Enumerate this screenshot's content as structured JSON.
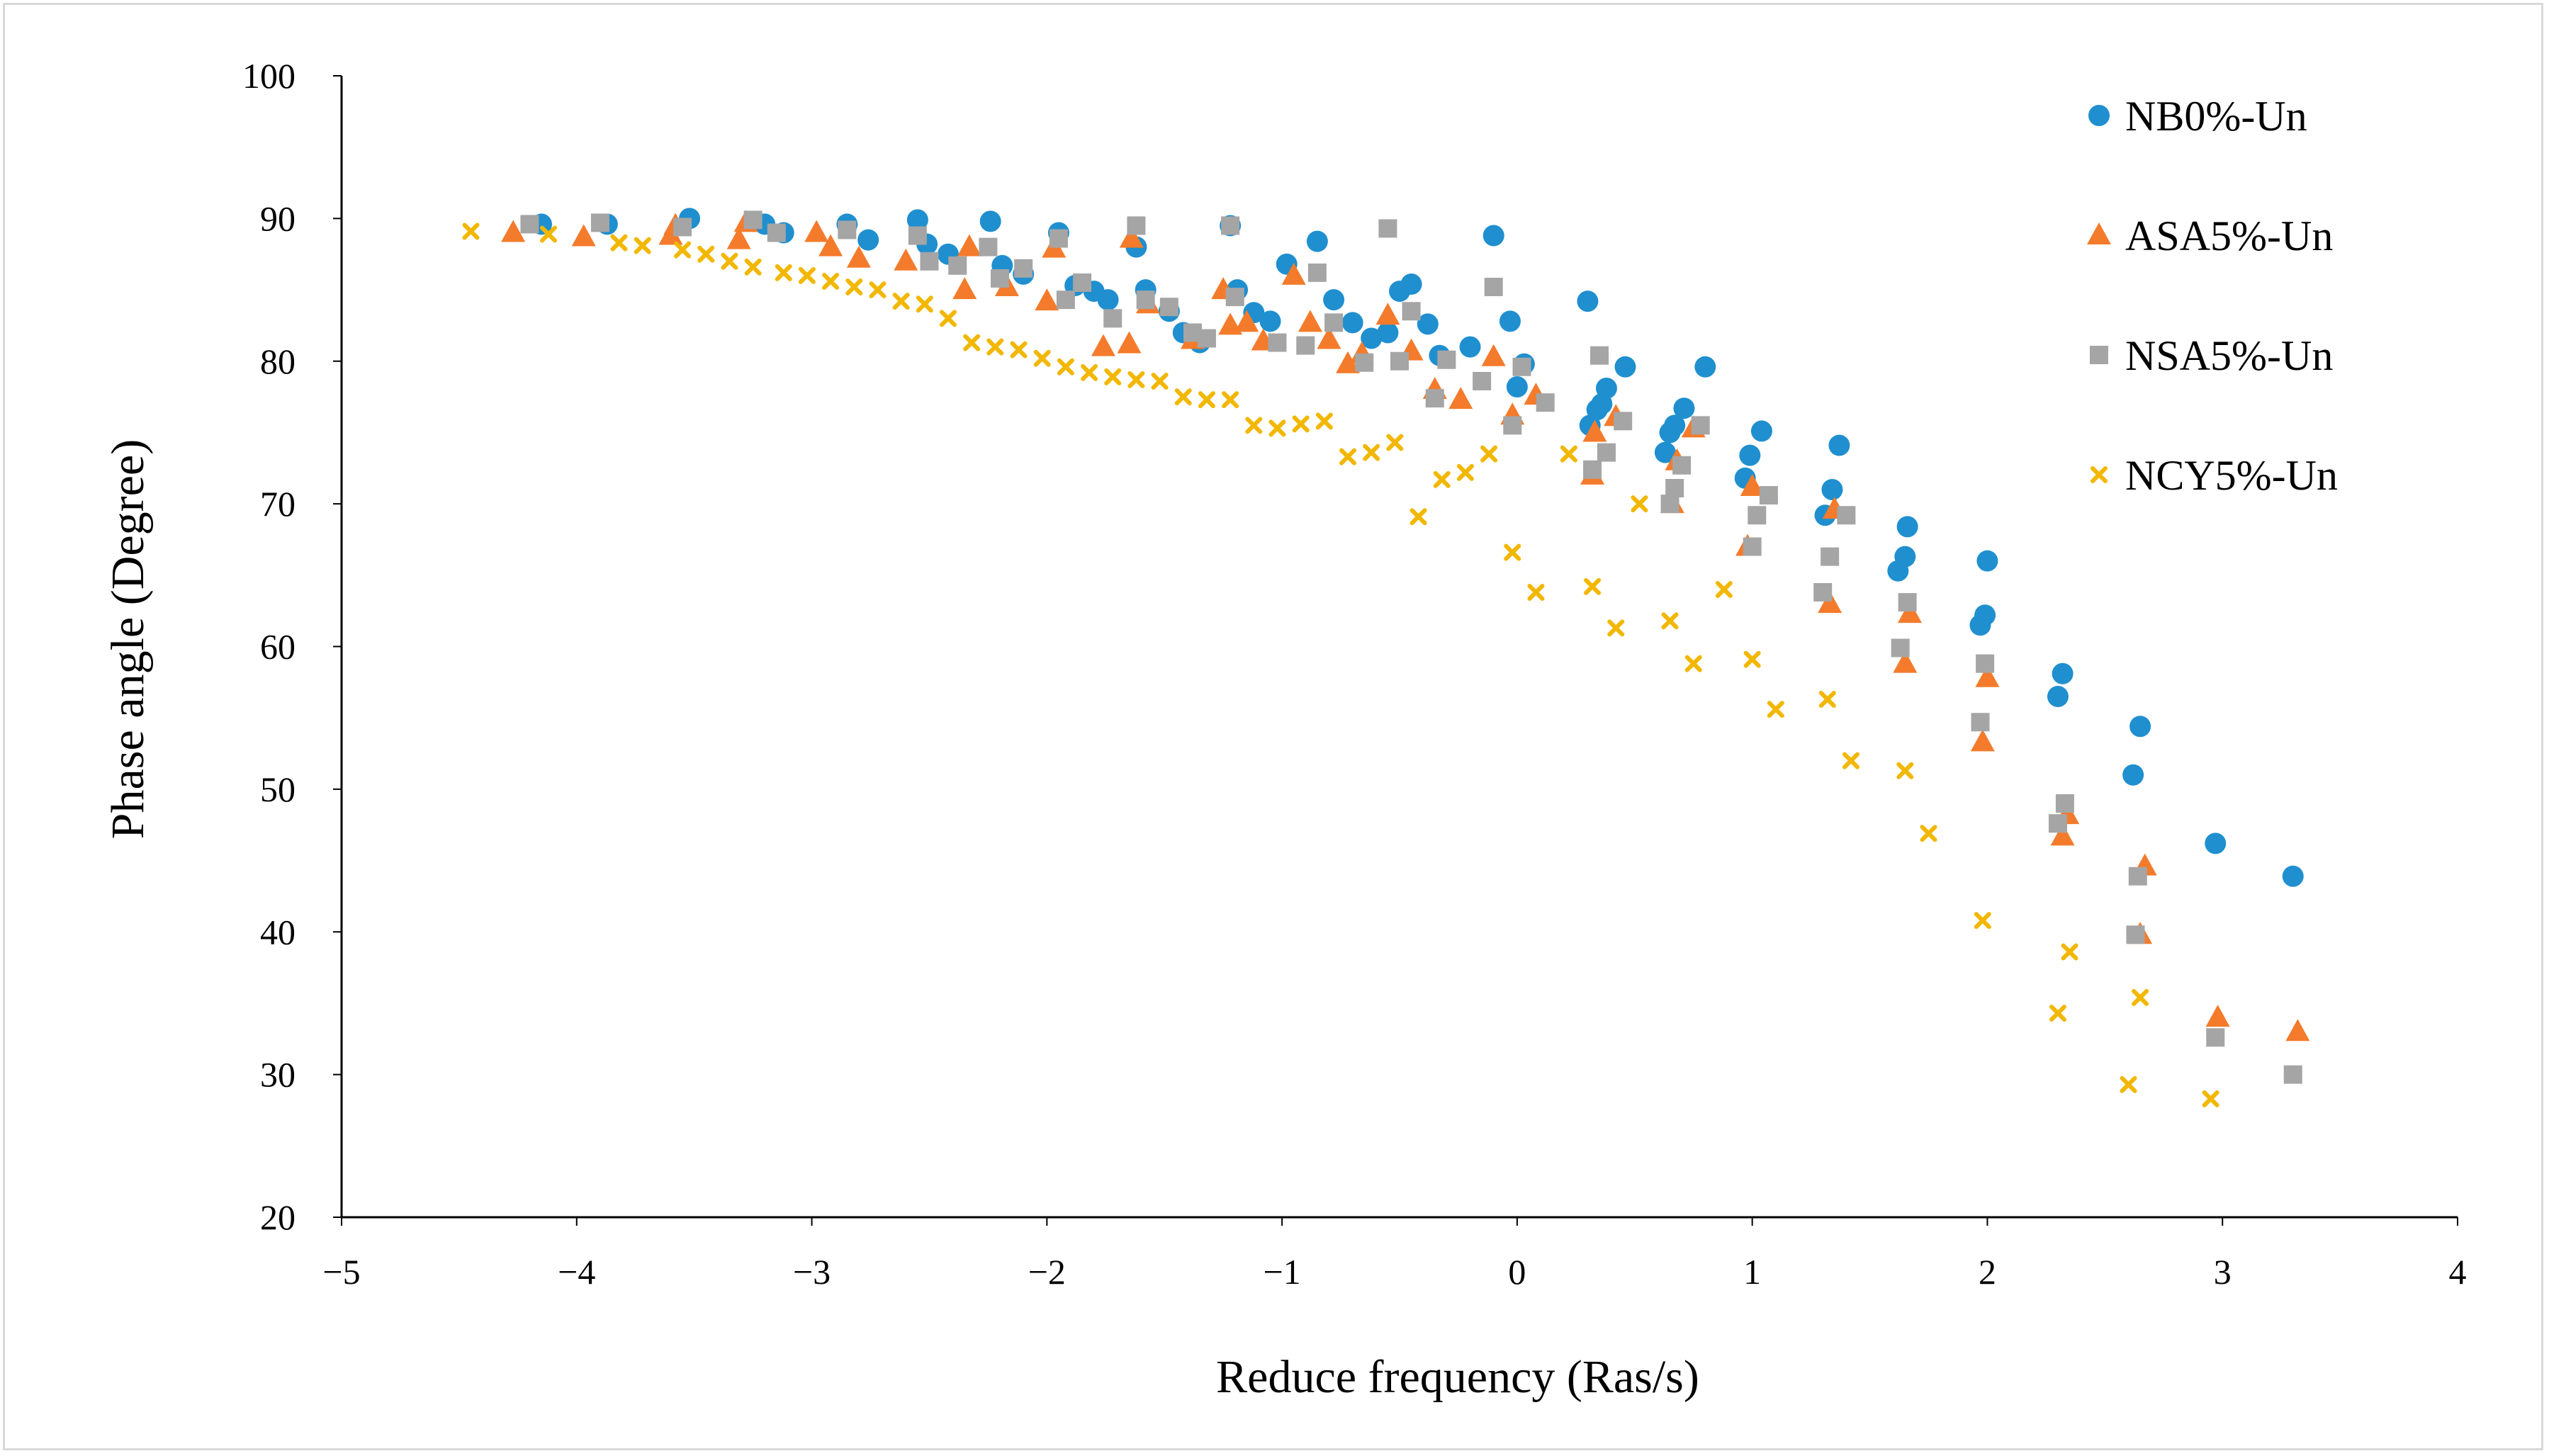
{
  "chart_data": {
    "type": "scatter",
    "title": "",
    "xlabel": "Reduce frequency (Ras/s)",
    "ylabel": "Phase angle (Degree)",
    "xlim": [
      -5,
      4
    ],
    "ylim": [
      20,
      100
    ],
    "xticks": [
      -5,
      -4,
      -3,
      -2,
      -1,
      0,
      1,
      2,
      3,
      4
    ],
    "yticks": [
      20,
      30,
      40,
      50,
      60,
      70,
      80,
      90,
      100
    ],
    "xtick_labels": [
      "−5",
      "−4",
      "−3",
      "−2",
      "−1",
      "0",
      "1",
      "2",
      "3",
      "4"
    ],
    "ytick_labels": [
      "20",
      "30",
      "40",
      "50",
      "60",
      "70",
      "80",
      "90",
      "100"
    ],
    "grid": false,
    "legend_position": "top-right",
    "series": [
      {
        "name": "NB0%-Un",
        "color": "#1f8fcf",
        "marker": "circle",
        "x": [
          -4.15,
          -3.87,
          -3.52,
          -3.2,
          -3.12,
          -2.85,
          -2.76,
          -2.55,
          -2.51,
          -2.42,
          -2.24,
          -2.19,
          -2.1,
          -1.95,
          -1.88,
          -1.8,
          -1.74,
          -1.62,
          -1.58,
          -1.48,
          -1.42,
          -1.35,
          -1.22,
          -1.19,
          -1.12,
          -1.05,
          -0.98,
          -0.85,
          -0.78,
          -0.7,
          -0.62,
          -0.55,
          -0.5,
          -0.45,
          -0.38,
          -0.33,
          -0.2,
          -0.1,
          -0.03,
          0.0,
          0.03,
          0.3,
          0.31,
          0.34,
          0.36,
          0.38,
          0.46,
          0.63,
          0.65,
          0.67,
          0.71,
          0.8,
          0.97,
          0.99,
          1.04,
          1.31,
          1.34,
          1.37,
          1.62,
          1.65,
          1.66,
          1.97,
          1.99,
          2.0,
          2.3,
          2.32,
          2.62,
          2.65,
          2.97,
          3.3
        ],
        "y": [
          89.6,
          89.6,
          90.0,
          89.6,
          89.0,
          89.6,
          88.5,
          89.9,
          88.2,
          87.5,
          89.8,
          86.7,
          86.1,
          89.0,
          85.3,
          84.9,
          84.3,
          88.0,
          85.0,
          83.5,
          82.0,
          81.3,
          89.5,
          85.0,
          83.4,
          82.8,
          86.8,
          88.4,
          84.3,
          82.7,
          81.6,
          82.0,
          84.9,
          85.4,
          82.6,
          80.4,
          81.0,
          88.8,
          82.8,
          78.2,
          79.8,
          84.2,
          75.5,
          76.6,
          77.0,
          78.1,
          79.6,
          73.6,
          75.0,
          75.5,
          76.7,
          79.6,
          71.8,
          73.4,
          75.1,
          69.2,
          71.0,
          74.1,
          65.3,
          66.3,
          68.4,
          61.5,
          62.2,
          66.0,
          56.5,
          58.1,
          51.0,
          54.4,
          46.2,
          43.9
        ]
      },
      {
        "name": "ASA5%-Un",
        "color": "#f47b2b",
        "marker": "triangle",
        "x": [
          -4.27,
          -3.97,
          -3.6,
          -3.58,
          -3.31,
          -3.28,
          -2.98,
          -2.92,
          -2.8,
          -2.6,
          -2.35,
          -2.33,
          -2.17,
          -2.0,
          -1.97,
          -1.76,
          -1.65,
          -1.64,
          -1.57,
          -1.38,
          -1.25,
          -1.22,
          -1.15,
          -1.08,
          -0.95,
          -0.88,
          -0.8,
          -0.72,
          -0.66,
          -0.55,
          -0.45,
          -0.35,
          -0.24,
          -0.1,
          -0.02,
          0.08,
          0.32,
          0.33,
          0.42,
          0.66,
          0.68,
          0.75,
          0.98,
          1.0,
          1.33,
          1.35,
          1.65,
          1.67,
          1.98,
          2.0,
          2.32,
          2.34,
          2.65,
          2.67,
          2.98,
          3.32
        ],
        "y": [
          89.0,
          88.7,
          88.8,
          89.5,
          88.5,
          89.7,
          89.0,
          88.0,
          87.2,
          87.0,
          85.0,
          88.0,
          85.2,
          84.2,
          87.9,
          81.0,
          81.2,
          88.6,
          84.0,
          81.5,
          85.0,
          82.5,
          82.7,
          81.4,
          86.0,
          82.7,
          81.5,
          79.8,
          80.5,
          83.2,
          80.7,
          78.0,
          77.3,
          80.3,
          76.2,
          77.6,
          72.0,
          75.0,
          76.1,
          70.0,
          73.0,
          75.3,
          67.0,
          71.2,
          63.0,
          69.6,
          58.8,
          62.3,
          53.3,
          57.8,
          46.7,
          48.2,
          39.8,
          44.6,
          34.0,
          33.0
        ]
      },
      {
        "name": "NSA5%-Un",
        "color": "#a5a5a5",
        "marker": "square",
        "x": [
          -4.2,
          -3.9,
          -3.55,
          -3.25,
          -3.15,
          -2.85,
          -2.55,
          -2.5,
          -2.38,
          -2.25,
          -2.2,
          -2.1,
          -1.95,
          -1.92,
          -1.85,
          -1.72,
          -1.62,
          -1.58,
          -1.48,
          -1.38,
          -1.32,
          -1.22,
          -1.2,
          -1.02,
          -0.9,
          -0.85,
          -0.78,
          -0.65,
          -0.55,
          -0.5,
          -0.45,
          -0.35,
          -0.3,
          -0.15,
          -0.1,
          -0.02,
          0.02,
          0.12,
          0.32,
          0.35,
          0.38,
          0.45,
          0.65,
          0.67,
          0.7,
          0.78,
          1.0,
          1.02,
          1.07,
          1.3,
          1.33,
          1.4,
          1.63,
          1.66,
          1.97,
          1.99,
          2.3,
          2.33,
          2.63,
          2.64,
          2.97,
          3.3
        ],
        "y": [
          89.6,
          89.7,
          89.4,
          89.9,
          89.0,
          89.2,
          88.8,
          87.0,
          86.7,
          88.0,
          85.8,
          86.5,
          88.6,
          84.3,
          85.5,
          83.0,
          89.5,
          84.3,
          83.8,
          82.0,
          81.6,
          89.5,
          84.5,
          81.3,
          81.1,
          86.2,
          82.7,
          79.9,
          89.3,
          80.0,
          83.5,
          77.4,
          80.1,
          78.6,
          85.2,
          75.5,
          79.6,
          77.1,
          72.4,
          80.4,
          73.6,
          75.8,
          70.0,
          71.1,
          72.7,
          75.5,
          67.0,
          69.2,
          70.6,
          63.8,
          66.3,
          69.2,
          59.9,
          63.1,
          54.7,
          58.8,
          47.6,
          49.0,
          39.8,
          43.9,
          32.6,
          30.0
        ]
      },
      {
        "name": "NCY5%-Un",
        "color": "#f2b700",
        "marker": "x",
        "x": [
          -4.45,
          -4.12,
          -3.82,
          -3.72,
          -3.55,
          -3.45,
          -3.35,
          -3.25,
          -3.12,
          -3.02,
          -2.92,
          -2.82,
          -2.72,
          -2.62,
          -2.52,
          -2.42,
          -2.32,
          -2.22,
          -2.12,
          -2.02,
          -1.92,
          -1.82,
          -1.72,
          -1.62,
          -1.52,
          -1.42,
          -1.32,
          -1.22,
          -1.12,
          -1.02,
          -0.92,
          -0.82,
          -0.72,
          -0.62,
          -0.52,
          -0.42,
          -0.32,
          -0.22,
          -0.12,
          -0.02,
          0.08,
          0.22,
          0.32,
          0.42,
          0.52,
          0.65,
          0.75,
          0.88,
          1.0,
          1.1,
          1.32,
          1.42,
          1.65,
          1.75,
          1.98,
          2.3,
          2.35,
          2.6,
          2.65,
          2.95
        ],
        "y": [
          89.1,
          88.9,
          88.3,
          88.1,
          87.8,
          87.5,
          87.0,
          86.6,
          86.2,
          86.0,
          85.6,
          85.2,
          85.0,
          84.2,
          84.0,
          83.0,
          81.3,
          81.0,
          80.8,
          80.2,
          79.6,
          79.2,
          78.9,
          78.7,
          78.6,
          77.5,
          77.3,
          77.3,
          75.5,
          75.3,
          75.6,
          75.8,
          73.3,
          73.6,
          74.3,
          69.1,
          71.7,
          72.2,
          73.5,
          66.6,
          63.8,
          73.5,
          64.2,
          61.3,
          70.0,
          61.8,
          58.8,
          64.0,
          59.1,
          55.6,
          56.3,
          52.0,
          51.3,
          46.9,
          40.8,
          34.3,
          38.6,
          29.3,
          35.4,
          28.3
        ]
      }
    ]
  }
}
